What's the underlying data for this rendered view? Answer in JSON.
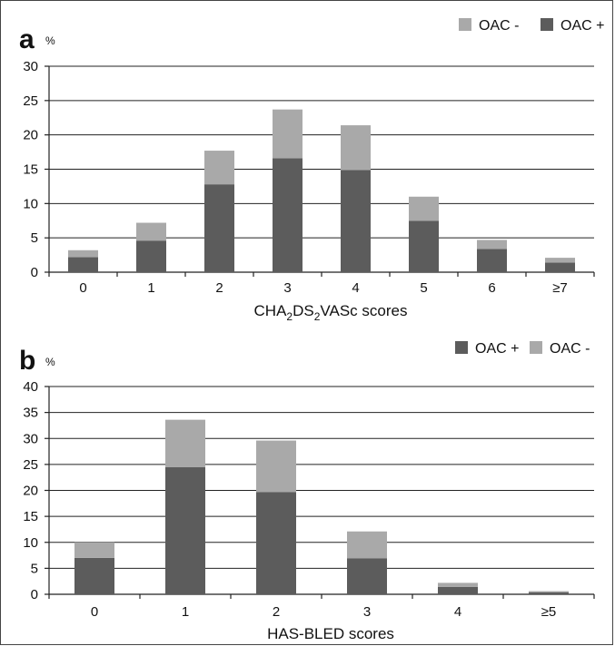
{
  "colors": {
    "oac_plus": "#5c5c5c",
    "oac_minus": "#a9a9a9",
    "grid": "#222222"
  },
  "chart_data": [
    {
      "type": "bar",
      "stacked": true,
      "panel_label": "a",
      "unit_label": "%",
      "categories": [
        "0",
        "1",
        "2",
        "3",
        "4",
        "5",
        "6",
        "≥7"
      ],
      "series": [
        {
          "name": "OAC +",
          "values": [
            2.2,
            4.6,
            12.8,
            16.6,
            14.9,
            7.5,
            3.4,
            1.4
          ]
        },
        {
          "name": "OAC -",
          "values": [
            1.0,
            2.6,
            4.9,
            7.1,
            6.5,
            3.5,
            1.3,
            0.7
          ]
        }
      ],
      "legend_order": [
        "OAC -",
        "OAC +"
      ],
      "legend_position": "top-right",
      "xlabel_parts": [
        {
          "t": "CHA"
        },
        {
          "t": "2",
          "sub": true
        },
        {
          "t": "DS"
        },
        {
          "t": "2",
          "sub": true
        },
        {
          "t": "VASc scores"
        }
      ],
      "ylim": [
        0,
        30
      ],
      "yticks": [
        0,
        5,
        10,
        15,
        20,
        25,
        30
      ],
      "grid": true
    },
    {
      "type": "bar",
      "stacked": true,
      "panel_label": "b",
      "unit_label": "%",
      "categories": [
        "0",
        "1",
        "2",
        "3",
        "4",
        "≥5"
      ],
      "series": [
        {
          "name": "OAC +",
          "values": [
            7.0,
            24.5,
            19.7,
            6.9,
            1.4,
            0.4
          ]
        },
        {
          "name": "OAC -",
          "values": [
            3.0,
            9.1,
            9.9,
            5.2,
            0.8,
            0.2
          ]
        }
      ],
      "legend_order": [
        "OAC +",
        "OAC -"
      ],
      "legend_position": "top-right",
      "xlabel_parts": [
        {
          "t": "HAS-BLED scores"
        }
      ],
      "ylim": [
        0,
        40
      ],
      "yticks": [
        0,
        5,
        10,
        15,
        20,
        25,
        30,
        35,
        40
      ],
      "grid": true
    }
  ]
}
